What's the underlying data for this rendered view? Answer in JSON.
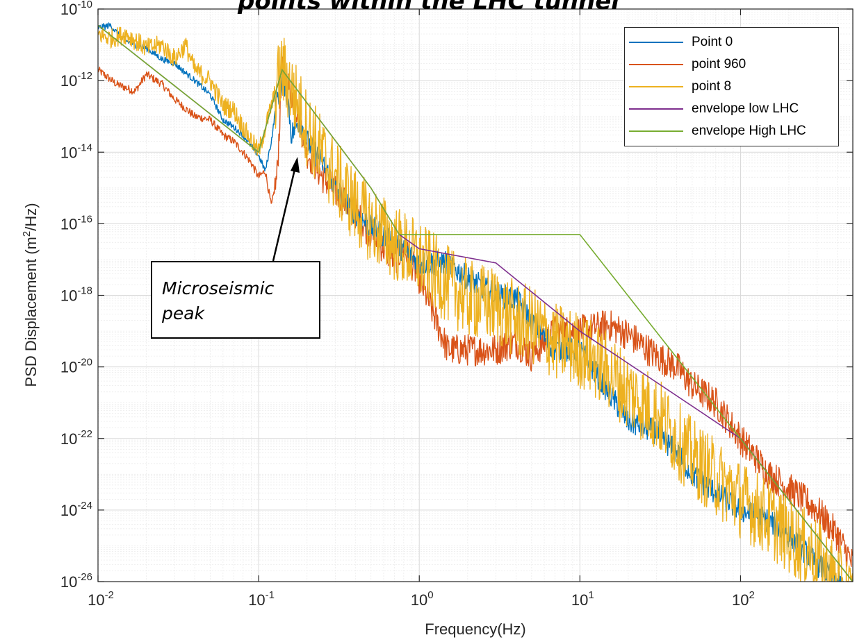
{
  "chart_data": {
    "type": "line",
    "title": "points within the LHC tunnel",
    "xlabel": "Frequency(Hz)",
    "ylabel": "PSD Displacement (m²/Hz)",
    "ylabel_parts": {
      "before": "PSD Displacement (m",
      "sup": "2",
      "after": "/Hz)"
    },
    "x_scale": "log",
    "y_scale": "log",
    "xlim": [
      0.01,
      500
    ],
    "ylim": [
      1e-26,
      1e-10
    ],
    "x_ticks": [
      {
        "value": 0.01,
        "base": "10",
        "exp": "-2"
      },
      {
        "value": 0.1,
        "base": "10",
        "exp": "-1"
      },
      {
        "value": 1,
        "base": "10",
        "exp": "0"
      },
      {
        "value": 10,
        "base": "10",
        "exp": "1"
      },
      {
        "value": 100,
        "base": "10",
        "exp": "2"
      }
    ],
    "y_ticks": [
      {
        "value": 1e-10,
        "base": "10",
        "exp": "-10"
      },
      {
        "value": 1e-12,
        "base": "10",
        "exp": "-12"
      },
      {
        "value": 1e-14,
        "base": "10",
        "exp": "-14"
      },
      {
        "value": 1e-16,
        "base": "10",
        "exp": "-16"
      },
      {
        "value": 1e-18,
        "base": "10",
        "exp": "-18"
      },
      {
        "value": 1e-20,
        "base": "10",
        "exp": "-20"
      },
      {
        "value": 1e-22,
        "base": "10",
        "exp": "-22"
      },
      {
        "value": 1e-24,
        "base": "10",
        "exp": "-24"
      },
      {
        "value": 1e-26,
        "base": "10",
        "exp": "-26"
      }
    ],
    "grid": true,
    "minor_grid": true,
    "legend_position": "top-right",
    "series": [
      {
        "name": "Point 0",
        "color": "#0072BD",
        "x": [
          0.01,
          0.012,
          0.014,
          0.017,
          0.02,
          0.025,
          0.03,
          0.04,
          0.05,
          0.06,
          0.07,
          0.08,
          0.09,
          0.1,
          0.11,
          0.12,
          0.13,
          0.14,
          0.15,
          0.16,
          0.18,
          0.2,
          0.25,
          0.3,
          0.4,
          0.5,
          0.7,
          1,
          1.5,
          2,
          3,
          4,
          5,
          7,
          10,
          15,
          20,
          30,
          40,
          50,
          70,
          100,
          150,
          200,
          300,
          400,
          500
        ],
        "y": [
          3e-11,
          3.5e-11,
          1.5e-11,
          1e-11,
          8e-12,
          4e-12,
          3e-12,
          1e-12,
          4e-13,
          8e-14,
          5e-14,
          3e-14,
          1.5e-14,
          8e-15,
          3e-15,
          2e-14,
          3e-13,
          1e-12,
          6e-13,
          3e-14,
          8e-14,
          2e-14,
          5e-15,
          1e-15,
          2e-16,
          8e-17,
          3e-17,
          8e-18,
          8e-18,
          3e-18,
          1e-18,
          8e-19,
          2e-19,
          3e-20,
          3e-20,
          2e-21,
          3e-22,
          1.5e-22,
          4e-23,
          1e-23,
          3e-24,
          1e-24,
          5e-25,
          2e-25,
          3e-26,
          1e-26,
          3e-27
        ],
        "band": 0.35
      },
      {
        "name": "point 960",
        "color": "#D95319",
        "x": [
          0.01,
          0.013,
          0.017,
          0.02,
          0.025,
          0.03,
          0.04,
          0.05,
          0.06,
          0.07,
          0.08,
          0.09,
          0.1,
          0.11,
          0.12,
          0.13,
          0.14,
          0.15,
          0.17,
          0.2,
          0.25,
          0.3,
          0.4,
          0.5,
          0.7,
          0.8,
          1,
          1.5,
          2,
          3,
          4,
          5,
          7,
          10,
          15,
          20,
          30,
          40,
          50,
          70,
          100,
          150,
          200,
          300,
          400,
          500
        ],
        "y": [
          2e-12,
          8e-13,
          5e-13,
          1.5e-12,
          8e-13,
          3e-13,
          1e-13,
          8e-14,
          3e-14,
          2e-14,
          1e-14,
          5e-15,
          2e-15,
          3e-15,
          3e-16,
          2e-15,
          2e-12,
          1e-12,
          2e-13,
          1e-14,
          2e-15,
          8e-16,
          2e-16,
          5e-17,
          1e-17,
          2e-17,
          3e-18,
          3e-20,
          3e-20,
          3e-20,
          5e-20,
          2e-20,
          1e-19,
          1e-19,
          1.5e-19,
          8e-20,
          2e-20,
          1e-20,
          3e-21,
          1e-21,
          1e-22,
          1e-23,
          4e-24,
          1e-24,
          2e-25,
          3e-26
        ],
        "band": 0.45
      },
      {
        "name": "point 8",
        "color": "#EDB120",
        "x": [
          0.01,
          0.012,
          0.015,
          0.02,
          0.025,
          0.03,
          0.035,
          0.04,
          0.05,
          0.06,
          0.07,
          0.08,
          0.1,
          0.12,
          0.14,
          0.15,
          0.17,
          0.2,
          0.25,
          0.3,
          0.4,
          0.5,
          0.7,
          1,
          1.5,
          2,
          3,
          4,
          5,
          7,
          10,
          15,
          20,
          30,
          40,
          50,
          70,
          100,
          150,
          200,
          300,
          400,
          500
        ],
        "y": [
          2e-11,
          1.5e-11,
          2e-11,
          8e-12,
          1e-11,
          4e-12,
          1e-11,
          2e-12,
          1e-12,
          2e-13,
          1.5e-13,
          5e-14,
          1e-14,
          2e-13,
          2e-12,
          1e-12,
          3e-13,
          5e-14,
          8e-15,
          2e-15,
          3e-16,
          1e-16,
          3e-17,
          1e-17,
          2e-18,
          8e-19,
          5e-19,
          2e-19,
          1.5e-19,
          5e-20,
          3e-20,
          8e-21,
          2e-21,
          5e-22,
          1e-22,
          3e-23,
          8e-24,
          2e-24,
          6e-25,
          2e-25,
          5e-26,
          1e-26,
          3e-27
        ],
        "band": 1.1
      },
      {
        "name": "envelope low LHC",
        "color": "#7E2F8E",
        "x": [
          0.01,
          0.1,
          0.14,
          0.5,
          0.75,
          1,
          3,
          10,
          100,
          500
        ],
        "y": [
          3.5e-11,
          1e-14,
          2e-12,
          1e-15,
          5e-17,
          2e-17,
          8e-18,
          1e-19,
          1e-22,
          1e-26
        ]
      },
      {
        "name": "envelope High LHC",
        "color": "#77AC30",
        "x": [
          0.01,
          0.1,
          0.14,
          0.5,
          0.75,
          10,
          500
        ],
        "y": [
          3.5e-11,
          1e-14,
          2e-12,
          1e-15,
          5e-17,
          5e-17,
          1e-26
        ]
      }
    ],
    "annotation": {
      "text": "Microseismic\npeak",
      "arrow_to": {
        "x": 0.155,
        "y": 2e-15
      }
    }
  }
}
